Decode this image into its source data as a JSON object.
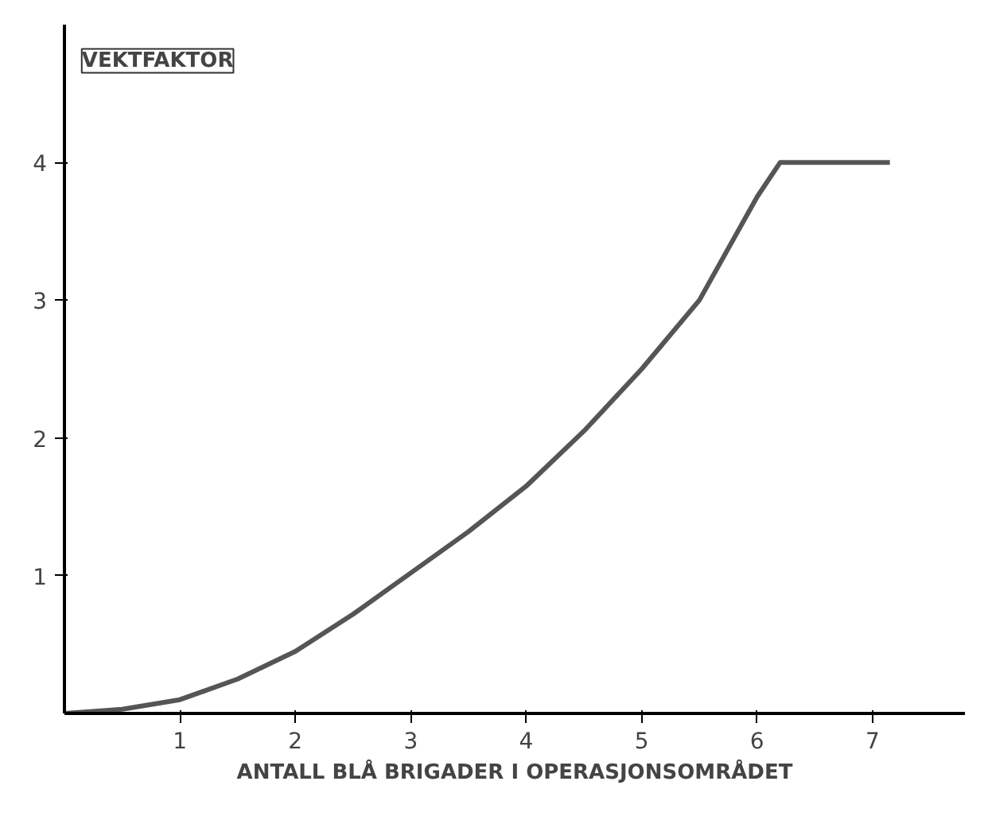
{
  "chart_data": {
    "type": "line",
    "xlabel": "ANTALL BLÅ BRIGADER I OPERASJONSOMRÅDET",
    "ylabel": "VEKTFAKTOR",
    "x": [
      0,
      0.5,
      1,
      1.5,
      2,
      2.5,
      3,
      3.5,
      4,
      4.5,
      5,
      5.5,
      6,
      6.2,
      6.6,
      7.15
    ],
    "series": [
      {
        "color": "#555555",
        "values": [
          0,
          0.03,
          0.1,
          0.25,
          0.45,
          0.72,
          1.02,
          1.32,
          1.65,
          2.05,
          2.5,
          3.0,
          3.75,
          4.0,
          4.0,
          4.0
        ]
      }
    ],
    "xlim": [
      0,
      7.8
    ],
    "ylim": [
      0,
      5.0
    ],
    "xticks": [
      1,
      2,
      3,
      4,
      5,
      6,
      7
    ],
    "yticks": [
      1,
      2,
      3,
      4
    ],
    "grid": false,
    "marker": "none",
    "line_style": "solid"
  }
}
